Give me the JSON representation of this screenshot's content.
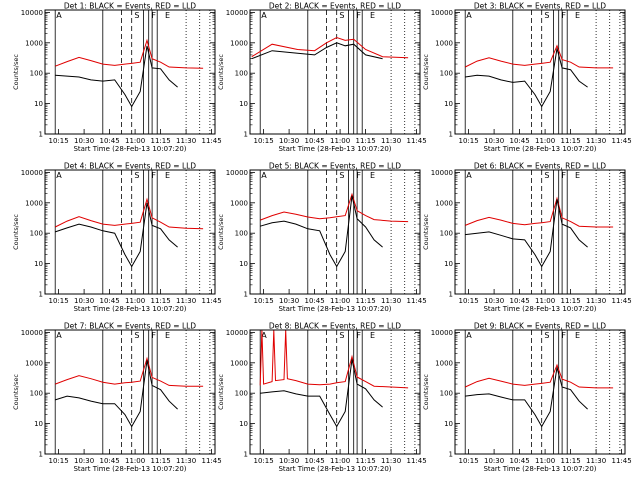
{
  "figure": {
    "xlabel": "Start Time (28-Feb-13 10:07:20)",
    "ylabel": "Counts/sec",
    "xticks": [
      "10:15",
      "10:30",
      "10:45",
      "11:00",
      "11:15",
      "11:30",
      "11:45"
    ],
    "yticks": [
      "1",
      "10",
      "100",
      "1000",
      "10000"
    ],
    "segment_letters": [
      "A",
      "S",
      "F",
      "E"
    ],
    "colors": {
      "events": "#000000",
      "lld": "#e00000",
      "axes": "#000000"
    }
  },
  "chart_data": [
    {
      "type": "line",
      "title": "Det 1: BLACK = Events, RED = LLD",
      "yscale": "log",
      "ylim": [
        1,
        12000
      ],
      "xlim": [
        "10:07",
        "11:47"
      ],
      "series": [
        {
          "name": "BLACK = Events",
          "color": "#000000",
          "x": [
            "10:13",
            "10:20",
            "10:27",
            "10:34",
            "10:41",
            "10:48",
            "10:54",
            "10:58",
            "11:03",
            "11:07",
            "11:10",
            "11:15",
            "11:20",
            "11:25"
          ],
          "values": [
            85,
            80,
            75,
            60,
            55,
            60,
            20,
            8,
            25,
            800,
            150,
            140,
            60,
            35
          ]
        },
        {
          "name": "RED = LLD",
          "color": "#e00000",
          "x": [
            "10:13",
            "10:20",
            "10:27",
            "10:34",
            "10:41",
            "10:48",
            "10:54",
            "10:58",
            "11:03",
            "11:07",
            "11:10",
            "11:15",
            "11:20",
            "11:30",
            "11:40"
          ],
          "values": [
            170,
            240,
            330,
            260,
            200,
            180,
            200,
            210,
            230,
            1200,
            300,
            230,
            160,
            150,
            145
          ]
        }
      ]
    },
    {
      "type": "line",
      "title": "Det 2: BLACK = Events, RED = LLD",
      "yscale": "log",
      "ylim": [
        1,
        12000
      ],
      "xlim": [
        "10:07",
        "11:47"
      ],
      "series": [
        {
          "name": "BLACK = Events",
          "color": "#000000",
          "x": [
            "10:08",
            "10:20",
            "10:35",
            "10:45",
            "10:52",
            "10:58",
            "11:03",
            "11:08",
            "11:15",
            "11:25"
          ],
          "values": [
            300,
            550,
            450,
            400,
            700,
            1000,
            800,
            900,
            400,
            300
          ]
        },
        {
          "name": "RED = LLD",
          "color": "#e00000",
          "x": [
            "10:08",
            "10:20",
            "10:35",
            "10:45",
            "10:52",
            "10:58",
            "11:03",
            "11:08",
            "11:15",
            "11:25",
            "11:40"
          ],
          "values": [
            350,
            900,
            600,
            550,
            1000,
            1500,
            1200,
            1300,
            600,
            350,
            320
          ]
        }
      ]
    },
    {
      "type": "line",
      "title": "Det 3: BLACK = Events, RED = LLD",
      "yscale": "log",
      "ylim": [
        1,
        12000
      ],
      "xlim": [
        "10:07",
        "11:47"
      ],
      "series": [
        {
          "name": "BLACK = Events",
          "color": "#000000",
          "x": [
            "10:13",
            "10:20",
            "10:27",
            "10:34",
            "10:41",
            "10:48",
            "10:54",
            "10:58",
            "11:03",
            "11:07",
            "11:10",
            "11:15",
            "11:20",
            "11:25"
          ],
          "values": [
            75,
            85,
            80,
            60,
            50,
            55,
            20,
            8,
            25,
            650,
            150,
            130,
            55,
            35
          ]
        },
        {
          "name": "RED = LLD",
          "color": "#e00000",
          "x": [
            "10:13",
            "10:20",
            "10:27",
            "10:34",
            "10:41",
            "10:48",
            "10:54",
            "10:58",
            "11:03",
            "11:07",
            "11:10",
            "11:15",
            "11:20",
            "11:30",
            "11:40"
          ],
          "values": [
            160,
            250,
            320,
            250,
            200,
            180,
            200,
            210,
            230,
            800,
            280,
            230,
            160,
            150,
            150
          ]
        }
      ]
    },
    {
      "type": "line",
      "title": "Det 4: BLACK = Events, RED = LLD",
      "yscale": "log",
      "ylim": [
        1,
        12000
      ],
      "xlim": [
        "10:07",
        "11:47"
      ],
      "series": [
        {
          "name": "BLACK = Events",
          "color": "#000000",
          "x": [
            "10:13",
            "10:20",
            "10:27",
            "10:34",
            "10:41",
            "10:48",
            "10:54",
            "10:58",
            "11:03",
            "11:07",
            "11:10",
            "11:15",
            "11:20",
            "11:25"
          ],
          "values": [
            110,
            150,
            200,
            160,
            120,
            100,
            20,
            8,
            25,
            1000,
            180,
            140,
            60,
            35
          ]
        },
        {
          "name": "RED = LLD",
          "color": "#e00000",
          "x": [
            "10:13",
            "10:20",
            "10:27",
            "10:34",
            "10:41",
            "10:48",
            "10:54",
            "10:58",
            "11:03",
            "11:07",
            "11:10",
            "11:15",
            "11:20",
            "11:30",
            "11:40"
          ],
          "values": [
            160,
            250,
            350,
            260,
            200,
            180,
            200,
            210,
            230,
            1300,
            320,
            230,
            160,
            145,
            140
          ]
        }
      ]
    },
    {
      "type": "line",
      "title": "Det 5: BLACK = Events, RED = LLD",
      "yscale": "log",
      "ylim": [
        1,
        12000
      ],
      "xlim": [
        "10:07",
        "11:47"
      ],
      "series": [
        {
          "name": "BLACK = Events",
          "color": "#000000",
          "x": [
            "10:13",
            "10:20",
            "10:27",
            "10:34",
            "10:41",
            "10:48",
            "10:54",
            "10:58",
            "11:03",
            "11:07",
            "11:10",
            "11:15",
            "11:20",
            "11:25"
          ],
          "values": [
            170,
            220,
            250,
            200,
            140,
            120,
            20,
            8,
            25,
            1700,
            300,
            160,
            60,
            35
          ]
        },
        {
          "name": "RED = LLD",
          "color": "#e00000",
          "x": [
            "10:13",
            "10:20",
            "10:27",
            "10:34",
            "10:41",
            "10:48",
            "10:54",
            "10:58",
            "11:03",
            "11:07",
            "11:10",
            "11:15",
            "11:20",
            "11:30",
            "11:40"
          ],
          "values": [
            270,
            380,
            500,
            420,
            340,
            300,
            320,
            350,
            380,
            1900,
            550,
            380,
            280,
            250,
            240
          ]
        }
      ]
    },
    {
      "type": "line",
      "title": "Det 6: BLACK = Events, RED = LLD",
      "yscale": "log",
      "ylim": [
        1,
        12000
      ],
      "xlim": [
        "10:07",
        "11:47"
      ],
      "series": [
        {
          "name": "BLACK = Events",
          "color": "#000000",
          "x": [
            "10:13",
            "10:20",
            "10:27",
            "10:34",
            "10:41",
            "10:48",
            "10:54",
            "10:58",
            "11:03",
            "11:07",
            "11:10",
            "11:15",
            "11:20",
            "11:25"
          ],
          "values": [
            90,
            100,
            110,
            85,
            65,
            60,
            20,
            8,
            25,
            1300,
            200,
            150,
            60,
            35
          ]
        },
        {
          "name": "RED = LLD",
          "color": "#e00000",
          "x": [
            "10:13",
            "10:20",
            "10:27",
            "10:34",
            "10:41",
            "10:48",
            "10:54",
            "10:58",
            "11:03",
            "11:07",
            "11:10",
            "11:15",
            "11:20",
            "11:30",
            "11:40"
          ],
          "values": [
            180,
            260,
            330,
            270,
            210,
            190,
            210,
            220,
            240,
            1400,
            320,
            240,
            170,
            160,
            160
          ]
        }
      ]
    },
    {
      "type": "line",
      "title": "Det 7: BLACK = Events, RED = LLD",
      "yscale": "log",
      "ylim": [
        1,
        12000
      ],
      "xlim": [
        "10:07",
        "11:47"
      ],
      "series": [
        {
          "name": "BLACK = Events",
          "color": "#000000",
          "x": [
            "10:13",
            "10:20",
            "10:27",
            "10:34",
            "10:41",
            "10:48",
            "10:54",
            "10:58",
            "11:03",
            "11:07",
            "11:10",
            "11:15",
            "11:20",
            "11:25"
          ],
          "values": [
            60,
            80,
            70,
            55,
            45,
            45,
            20,
            8,
            25,
            1200,
            180,
            130,
            55,
            30
          ]
        },
        {
          "name": "RED = LLD",
          "color": "#e00000",
          "x": [
            "10:13",
            "10:20",
            "10:27",
            "10:34",
            "10:41",
            "10:48",
            "10:54",
            "10:58",
            "11:03",
            "11:07",
            "11:10",
            "11:15",
            "11:20",
            "11:30",
            "11:40"
          ],
          "values": [
            200,
            280,
            380,
            300,
            230,
            200,
            220,
            230,
            250,
            1400,
            330,
            250,
            180,
            170,
            170
          ]
        }
      ]
    },
    {
      "type": "line",
      "title": "Det 8: BLACK = Events, RED = LLD",
      "yscale": "log",
      "ylim": [
        1,
        12000
      ],
      "xlim": [
        "10:07",
        "11:47"
      ],
      "series": [
        {
          "name": "BLACK = Events",
          "color": "#000000",
          "x": [
            "10:13",
            "10:20",
            "10:27",
            "10:34",
            "10:41",
            "10:48",
            "10:54",
            "10:58",
            "11:03",
            "11:07",
            "11:10",
            "11:15",
            "11:20",
            "11:25"
          ],
          "values": [
            100,
            110,
            120,
            95,
            80,
            80,
            20,
            8,
            25,
            1300,
            200,
            140,
            60,
            35
          ]
        },
        {
          "name": "RED = LLD",
          "color": "#e00000",
          "x": [
            "10:13",
            "10:14",
            "10:15",
            "10:20",
            "10:21",
            "10:22",
            "10:27",
            "10:28",
            "10:29",
            "10:34",
            "10:41",
            "10:48",
            "10:54",
            "10:58",
            "11:03",
            "11:07",
            "11:10",
            "11:15",
            "11:20",
            "11:30",
            "11:40"
          ],
          "values": [
            180,
            12000,
            200,
            240,
            12000,
            260,
            280,
            12000,
            300,
            260,
            200,
            190,
            200,
            220,
            240,
            1600,
            340,
            240,
            170,
            160,
            150
          ]
        }
      ]
    },
    {
      "type": "line",
      "title": "Det 9: BLACK = Events, RED = LLD",
      "yscale": "log",
      "ylim": [
        1,
        12000
      ],
      "xlim": [
        "10:07",
        "11:47"
      ],
      "series": [
        {
          "name": "BLACK = Events",
          "color": "#000000",
          "x": [
            "10:13",
            "10:20",
            "10:27",
            "10:34",
            "10:41",
            "10:48",
            "10:54",
            "10:58",
            "11:03",
            "11:07",
            "11:10",
            "11:15",
            "11:20",
            "11:25"
          ],
          "values": [
            80,
            90,
            95,
            75,
            60,
            60,
            20,
            8,
            25,
            700,
            160,
            130,
            55,
            30
          ]
        },
        {
          "name": "RED = LLD",
          "color": "#e00000",
          "x": [
            "10:13",
            "10:20",
            "10:27",
            "10:34",
            "10:41",
            "10:48",
            "10:54",
            "10:58",
            "11:03",
            "11:07",
            "11:10",
            "11:15",
            "11:20",
            "11:30",
            "11:40"
          ],
          "values": [
            160,
            240,
            310,
            250,
            200,
            180,
            200,
            210,
            230,
            850,
            290,
            230,
            160,
            150,
            150
          ]
        }
      ]
    }
  ]
}
